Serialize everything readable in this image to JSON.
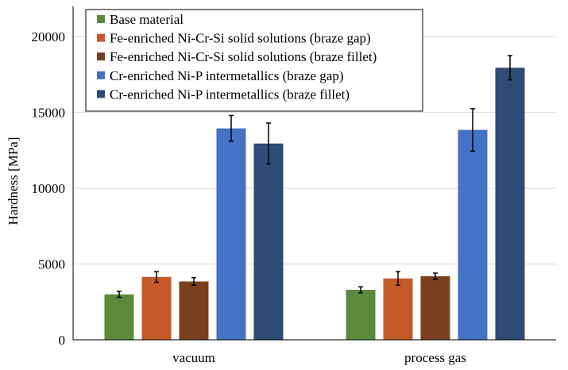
{
  "chart_data": {
    "type": "bar",
    "title": "",
    "xlabel": "",
    "ylabel": "Hardness [MPa]",
    "ylim": [
      0,
      22000
    ],
    "yticks": [
      0,
      5000,
      10000,
      15000,
      20000
    ],
    "grid": true,
    "legend_position": "top-left",
    "categories": [
      "vacuum",
      "process gas"
    ],
    "series": [
      {
        "name": "Base material",
        "color": "#5b8a3c",
        "values": [
          3000,
          3300
        ],
        "errors": [
          200,
          200
        ]
      },
      {
        "name": "Fe-enriched Ni-Cr-Si solid solutions (braze gap)",
        "color": "#c55a28",
        "values": [
          4150,
          4050
        ],
        "errors": [
          350,
          450
        ]
      },
      {
        "name": "Fe-enriched Ni-Cr-Si solid solutions (braze fillet)",
        "color": "#7a3f1d",
        "values": [
          3850,
          4200
        ],
        "errors": [
          250,
          200
        ]
      },
      {
        "name": "Cr-enriched Ni-P intermetallics (braze gap)",
        "color": "#4472c4",
        "values": [
          13950,
          13850
        ],
        "errors": [
          850,
          1400
        ]
      },
      {
        "name": "Cr-enriched Ni-P intermetallics (braze fillet)",
        "color": "#2f4a77",
        "values": [
          12950,
          17950
        ],
        "errors": [
          1350,
          800
        ]
      }
    ]
  }
}
